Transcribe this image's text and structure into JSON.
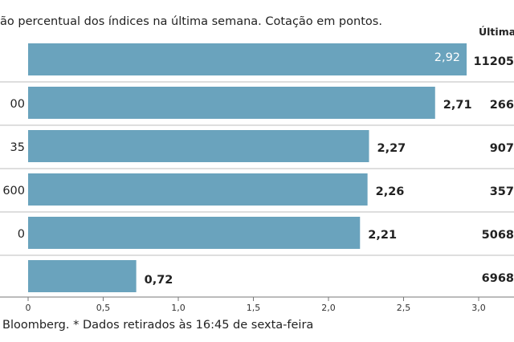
{
  "subtitle": "ão percentual dos índices na última semana. Cotação em pontos.",
  "source": "Bloomberg.  * Dados retirados às 16:45 de sexta-feira",
  "last_col_header": "Última c",
  "bar_color": "#6aa3bd",
  "chart_data": {
    "type": "bar",
    "orientation": "horizontal",
    "categories": [
      "",
      "00",
      "35",
      "600",
      "0",
      ""
    ],
    "values": [
      2.92,
      2.71,
      2.27,
      2.26,
      2.21,
      0.72
    ],
    "value_labels": [
      "2,92",
      "2,71",
      "2,27",
      "2,26",
      "2,21",
      "0,72"
    ],
    "last_values": [
      "11205",
      "266",
      "907",
      "357",
      "5068",
      "6968"
    ],
    "xlim": [
      0,
      3.2
    ],
    "ticks": [
      0,
      0.5,
      1.0,
      1.5,
      2.0,
      2.5,
      3.0
    ],
    "tick_labels": [
      "0",
      "0,5",
      "1,0",
      "1,5",
      "2,0",
      "2,5",
      "3,0"
    ],
    "grid": false
  }
}
